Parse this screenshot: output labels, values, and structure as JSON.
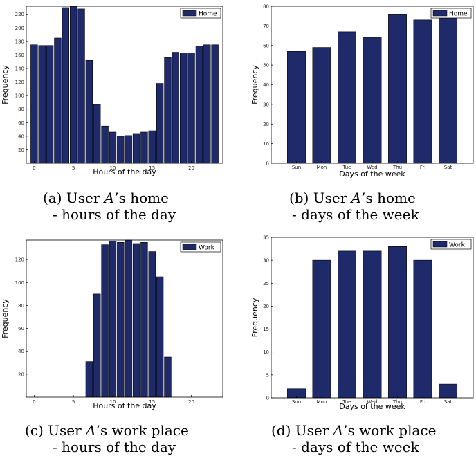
{
  "colors": {
    "bar": "#1f2a6b",
    "axis": "#000000"
  },
  "chart_data": [
    {
      "id": "a",
      "type": "bar",
      "x": [
        0,
        1,
        2,
        3,
        4,
        5,
        6,
        7,
        8,
        9,
        10,
        11,
        12,
        13,
        14,
        15,
        16,
        17,
        18,
        19,
        20,
        21,
        22,
        23
      ],
      "values": [
        175,
        174,
        174,
        185,
        230,
        233,
        228,
        152,
        87,
        55,
        46,
        40,
        41,
        44,
        46,
        48,
        118,
        156,
        164,
        163,
        163,
        173,
        175,
        175
      ],
      "xlabel": "Hours of the day",
      "ylabel": "Frequency",
      "xlim": [
        -1,
        24
      ],
      "ylim": [
        0,
        232
      ],
      "xticks": [
        0,
        5,
        10,
        15,
        20
      ],
      "yticks": [
        20,
        40,
        60,
        80,
        100,
        120,
        140,
        160,
        180,
        200,
        220
      ],
      "legend": "Home",
      "legend_position": "top-right"
    },
    {
      "id": "b",
      "type": "bar",
      "categories": [
        "Sun",
        "Mon",
        "Tue",
        "Wed",
        "Thu",
        "Fri",
        "Sat"
      ],
      "values": [
        57,
        59,
        67,
        64,
        76,
        73,
        74
      ],
      "xlabel": "Days of the week",
      "ylabel": "Frequency",
      "ylim": [
        0,
        80
      ],
      "yticks": [
        0,
        10,
        20,
        30,
        40,
        50,
        60,
        70,
        80
      ],
      "legend": "Home",
      "legend_position": "top-right"
    },
    {
      "id": "c",
      "type": "bar",
      "x": [
        0,
        1,
        2,
        3,
        4,
        5,
        6,
        7,
        8,
        9,
        10,
        11,
        12,
        13,
        14,
        15,
        16,
        17,
        18,
        19,
        20,
        21,
        22,
        23
      ],
      "values": [
        0,
        0,
        0,
        0,
        0,
        0,
        0,
        31,
        90,
        133,
        136,
        135,
        137,
        134,
        135,
        127,
        105,
        35,
        0,
        0,
        0,
        0,
        0,
        0
      ],
      "xlabel": "Hours of the day",
      "ylabel": "Frequency",
      "xlim": [
        -1,
        24
      ],
      "ylim": [
        0,
        137
      ],
      "xticks": [
        0,
        5,
        10,
        15,
        20
      ],
      "yticks": [
        20,
        40,
        60,
        80,
        100,
        120
      ],
      "legend": "Work",
      "legend_position": "top-right"
    },
    {
      "id": "d",
      "type": "bar",
      "categories": [
        "Sun",
        "Mon",
        "Tue",
        "Wed",
        "Thu",
        "Fri",
        "Sat"
      ],
      "values": [
        2,
        30,
        32,
        32,
        33,
        30,
        3
      ],
      "xlabel": "Days of the week",
      "ylabel": "Frequency",
      "ylim": [
        0,
        35
      ],
      "yticks": [
        0,
        5,
        10,
        15,
        20,
        25,
        30,
        35
      ],
      "legend": "Work",
      "legend_position": "top-right"
    }
  ],
  "captions": {
    "a": {
      "prefix": "(a) User ",
      "user": "A",
      "suffix": "’s home",
      "line2": "- hours of the day"
    },
    "b": {
      "prefix": "(b) User ",
      "user": "A",
      "suffix": "’s home",
      "line2": "- days of the week"
    },
    "c": {
      "prefix": "(c) User ",
      "user": "A",
      "suffix": "’s work place",
      "line2": "- hours of the day"
    },
    "d": {
      "prefix": "(d) User ",
      "user": "A",
      "suffix": "’s work place",
      "line2": "- days of the week"
    }
  }
}
